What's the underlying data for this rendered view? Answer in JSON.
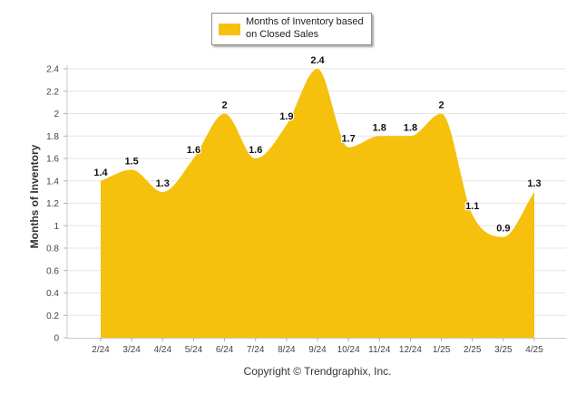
{
  "chart_data": {
    "type": "area",
    "categories": [
      "2/24",
      "3/24",
      "4/24",
      "5/24",
      "6/24",
      "7/24",
      "8/24",
      "9/24",
      "10/24",
      "11/24",
      "12/24",
      "1/25",
      "2/25",
      "3/25",
      "4/25"
    ],
    "series": [
      {
        "name": "Months of Inventory based on Closed Sales",
        "values": [
          1.4,
          1.5,
          1.3,
          1.6,
          2,
          1.6,
          1.9,
          2.4,
          1.7,
          1.8,
          1.8,
          2,
          1.1,
          0.9,
          1.3
        ],
        "labels": [
          "1.4",
          "1.5",
          "1.3",
          "1.6",
          "2",
          "1.6",
          "1.9",
          "2.4",
          "1.7",
          "1.8",
          "1.8",
          "2",
          "1.1",
          "0.9",
          "1.3"
        ],
        "color": "#F5C10D"
      }
    ],
    "yticks": [
      0,
      0.2,
      0.4,
      0.6,
      0.8,
      1,
      1.2,
      1.4,
      1.6,
      1.8,
      2,
      2.2,
      2.4
    ],
    "ytick_labels": [
      "0",
      "0.2",
      "0.4",
      "0.6",
      "0.8",
      "1",
      "1.2",
      "1.4",
      "1.6",
      "1.8",
      "2",
      "2.2",
      "2.4"
    ],
    "ylim": [
      0,
      2.4
    ],
    "ylabel": "Months of Inventory",
    "xlabel": "",
    "legend": "top-center",
    "grid": true
  },
  "copyright": "Copyright © Trendgraphix, Inc."
}
